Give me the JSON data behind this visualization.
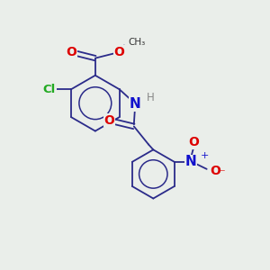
{
  "bg_color": "#eaeeea",
  "bond_color": "#2b2b8a",
  "atom_colors": {
    "O": "#dd0000",
    "N": "#1111cc",
    "Cl": "#22aa22",
    "H": "#888888",
    "C": "#000000"
  },
  "lw": 1.3,
  "figsize": [
    3.0,
    3.0
  ],
  "dpi": 100
}
